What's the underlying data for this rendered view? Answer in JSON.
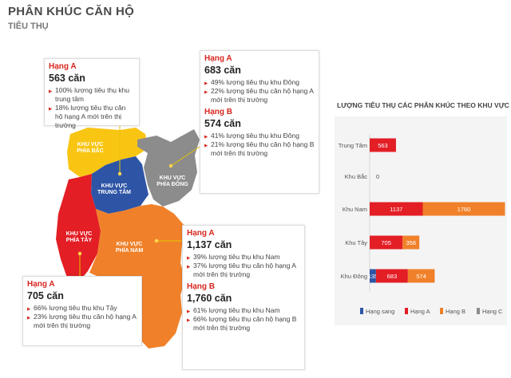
{
  "header": {
    "title": "PHÂN KHÚC CĂN HỘ",
    "subtitle": "TIÊU THỤ"
  },
  "regions": {
    "bac": "KHU VỰC PHÍA BẮC",
    "trung_tam": "KHU VỰC TRUNG TÂM",
    "dong": "KHU VỰC PHÍA ĐÔNG",
    "tay": "KHU VỰC PHÍA TÂY",
    "nam": "KHU VỰC PHÍA NAM"
  },
  "colors": {
    "bac": "#f9c513",
    "trung_tam": "#2e55a5",
    "dong": "#8c8c8c",
    "tay": "#e31e25",
    "nam": "#f0812a"
  },
  "boxes": {
    "trung_tam": {
      "h": "Hạng A",
      "c": "563 căn",
      "l1": "100% lượng tiêu thụ khu trung tâm",
      "l2": "18% lượng tiêu thụ căn hộ hạng A mới trên thị trường"
    },
    "dong_a": {
      "h": "Hạng A",
      "c": "683 căn",
      "l1": "49% lượng tiêu thụ khu Đông",
      "l2": "22% lượng tiêu thụ căn hộ hạng A mới trên thị trường"
    },
    "dong_b": {
      "h": "Hạng B",
      "c": "574 căn",
      "l1": "41% lượng tiêu thụ khu Đông",
      "l2": "21% lượng tiêu thụ căn hộ hạng B mới trên thị trường"
    },
    "nam_a": {
      "h": "Hạng A",
      "c": "1,137 căn",
      "l1": "39% lượng tiêu thụ khu Nam",
      "l2": "37% lượng tiêu thụ căn hộ hạng A mới trên thị trường"
    },
    "nam_b": {
      "h": "Hạng B",
      "c": "1,760 căn",
      "l1": "61% lượng tiêu thụ khu Nam",
      "l2": "66% lượng tiêu thụ căn hộ hạng B mới trên thị trường"
    },
    "tay": {
      "h": "Hạng A",
      "c": "705 căn",
      "l1": "66% lượng tiêu thụ khu Tây",
      "l2": "23% lượng tiêu thụ căn hộ hạng A mới trên thị trường"
    }
  },
  "chart_data": {
    "type": "bar",
    "orientation": "horizontal",
    "stacked": true,
    "title": "LƯỢNG TIÊU THỤ CÁC PHÂN KHÚC THEO KHU VỰC",
    "categories": [
      "Trung Tâm",
      "Khu Bắc",
      "Khu Nam",
      "Khu Tây",
      "Khu Đông"
    ],
    "series": [
      {
        "name": "Hạng sang",
        "color": "#2e55a5",
        "values": [
          0,
          0,
          0,
          0,
          135
        ]
      },
      {
        "name": "Hạng A",
        "color": "#e31e25",
        "values": [
          563,
          0,
          1137,
          705,
          683
        ]
      },
      {
        "name": "Hạng B",
        "color": "#f0812a",
        "values": [
          0,
          0,
          1760,
          358,
          574
        ]
      },
      {
        "name": "Hạng C",
        "color": "#8c8c8c",
        "values": [
          0,
          0,
          0,
          0,
          0
        ]
      }
    ],
    "zero_label": "0",
    "legend_position": "bottom",
    "grid": false
  }
}
